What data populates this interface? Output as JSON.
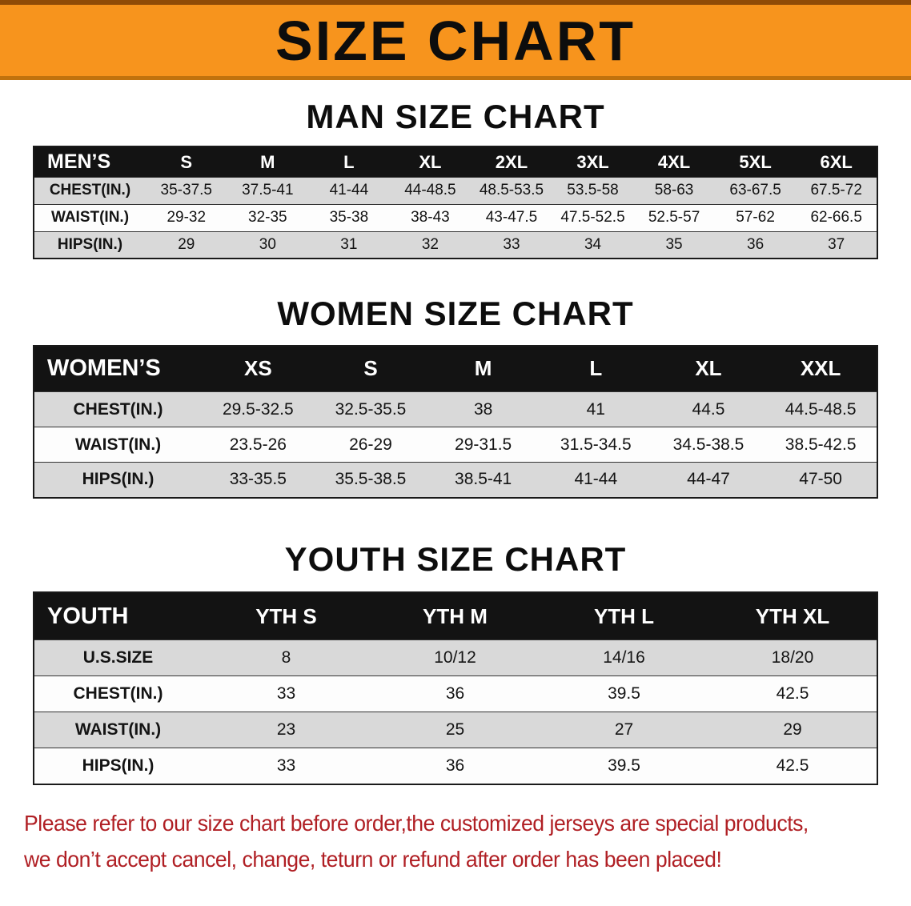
{
  "banner": {
    "title": "SIZE CHART",
    "bg_color": "#f7941d"
  },
  "sections": [
    {
      "id": "men",
      "title": "MAN SIZE CHART",
      "corner_label": "MEN’S",
      "columns": [
        "S",
        "M",
        "L",
        "XL",
        "2XL",
        "3XL",
        "4XL",
        "5XL",
        "6XL"
      ],
      "rows": [
        {
          "label": "CHEST(IN.)",
          "values": [
            "35-37.5",
            "37.5-41",
            "41-44",
            "44-48.5",
            "48.5-53.5",
            "53.5-58",
            "58-63",
            "63-67.5",
            "67.5-72"
          ]
        },
        {
          "label": "WAIST(IN.)",
          "values": [
            "29-32",
            "32-35",
            "35-38",
            "38-43",
            "43-47.5",
            "47.5-52.5",
            "52.5-57",
            "57-62",
            "62-66.5"
          ]
        },
        {
          "label": "HIPS(IN.)",
          "values": [
            "29",
            "30",
            "31",
            "32",
            "33",
            "34",
            "35",
            "36",
            "37"
          ]
        }
      ]
    },
    {
      "id": "women",
      "title": "WOMEN SIZE CHART",
      "corner_label": "WOMEN’S",
      "columns": [
        "XS",
        "S",
        "M",
        "L",
        "XL",
        "XXL"
      ],
      "rows": [
        {
          "label": "CHEST(IN.)",
          "values": [
            "29.5-32.5",
            "32.5-35.5",
            "38",
            "41",
            "44.5",
            "44.5-48.5"
          ]
        },
        {
          "label": "WAIST(IN.)",
          "values": [
            "23.5-26",
            "26-29",
            "29-31.5",
            "31.5-34.5",
            "34.5-38.5",
            "38.5-42.5"
          ]
        },
        {
          "label": "HIPS(IN.)",
          "values": [
            "33-35.5",
            "35.5-38.5",
            "38.5-41",
            "41-44",
            "44-47",
            "47-50"
          ]
        }
      ]
    },
    {
      "id": "youth",
      "title": "YOUTH SIZE CHART",
      "corner_label": "YOUTH",
      "columns": [
        "YTH S",
        "YTH M",
        "YTH L",
        "YTH XL"
      ],
      "rows": [
        {
          "label": "U.S.SIZE",
          "values": [
            "8",
            "10/12",
            "14/16",
            "18/20"
          ]
        },
        {
          "label": "CHEST(IN.)",
          "values": [
            "33",
            "36",
            "39.5",
            "42.5"
          ]
        },
        {
          "label": "WAIST(IN.)",
          "values": [
            "23",
            "25",
            "27",
            "29"
          ]
        },
        {
          "label": "HIPS(IN.)",
          "values": [
            "33",
            "36",
            "39.5",
            "42.5"
          ]
        }
      ]
    }
  ],
  "footer": {
    "line1": "Please refer to our size chart before order,the customized jerseys are special products,",
    "line2": "we don’t accept cancel, change, teturn or refund after order has been placed!",
    "text_color": "#b01f24"
  }
}
